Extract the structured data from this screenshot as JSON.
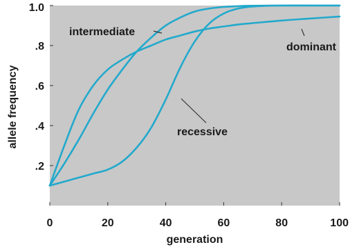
{
  "chart_data": {
    "type": "line",
    "xlabel": "generation",
    "ylabel": "allele frequency",
    "xlim": [
      0,
      100
    ],
    "ylim": [
      0.0,
      1.0
    ],
    "x_ticks": [
      "0",
      "20",
      "40",
      "60",
      "80",
      "100"
    ],
    "y_ticks": [
      "1.0",
      ".8",
      ".6",
      ".4",
      ".2"
    ],
    "background_color": "#c8c8c8",
    "line_color": "#22a9cc",
    "grid": false,
    "series": [
      {
        "name": "intermediate",
        "x": [
          0,
          5,
          10,
          15,
          20,
          25,
          30,
          35,
          40,
          45,
          50,
          55,
          60,
          65,
          70,
          80,
          90,
          100
        ],
        "y": [
          0.1,
          0.21,
          0.33,
          0.46,
          0.58,
          0.68,
          0.77,
          0.84,
          0.9,
          0.94,
          0.97,
          0.985,
          0.993,
          0.997,
          0.999,
          1.0,
          1.0,
          1.0
        ]
      },
      {
        "name": "dominant",
        "x": [
          0,
          5,
          10,
          15,
          20,
          25,
          30,
          35,
          40,
          45,
          50,
          55,
          60,
          65,
          70,
          80,
          90,
          100
        ],
        "y": [
          0.1,
          0.3,
          0.48,
          0.6,
          0.68,
          0.73,
          0.77,
          0.8,
          0.83,
          0.85,
          0.87,
          0.885,
          0.895,
          0.905,
          0.912,
          0.925,
          0.935,
          0.945
        ]
      },
      {
        "name": "recessive",
        "x": [
          0,
          5,
          10,
          15,
          20,
          25,
          30,
          35,
          40,
          45,
          50,
          55,
          60,
          65,
          70,
          80,
          90,
          100
        ],
        "y": [
          0.1,
          0.12,
          0.14,
          0.16,
          0.18,
          0.22,
          0.29,
          0.39,
          0.53,
          0.69,
          0.82,
          0.91,
          0.96,
          0.985,
          0.995,
          1.0,
          1.0,
          1.0
        ]
      }
    ]
  }
}
